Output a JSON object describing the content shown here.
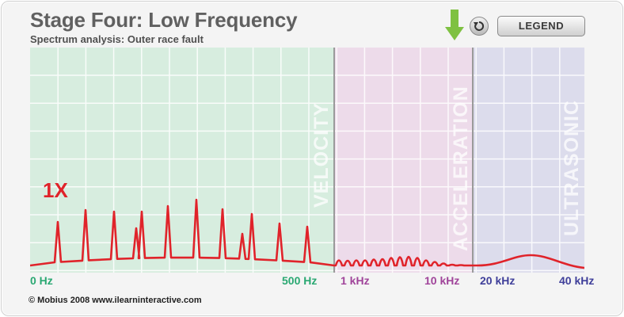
{
  "header": {
    "title": "Stage Four: Low Frequency",
    "subtitle": "Spectrum analysis: Outer race fault"
  },
  "controls": {
    "legend_label": "LEGEND",
    "reset_icon": "reset-icon",
    "indicator_icon": "down-arrow-icon"
  },
  "colors": {
    "velocity_band": "#d7eddf",
    "acceleration_band": "#eddbea",
    "ultrasonic_band": "#dcdcec",
    "spectrum_line": "#e0232a",
    "velocity_text": "#2aa872",
    "acceleration_text": "#a0449a",
    "ultrasonic_text": "#3f3f9a",
    "arrow": "#7fc142"
  },
  "chart_data": {
    "type": "line",
    "title": "Spectrum analysis: Outer race fault",
    "bands": [
      {
        "name": "VELOCITY",
        "from": "0 Hz",
        "to": "1 kHz"
      },
      {
        "name": "ACCELERATION",
        "from": "1 kHz",
        "to": "20 kHz"
      },
      {
        "name": "ULTRASONIC",
        "from": "20 kHz",
        "to": "40 kHz"
      }
    ],
    "x_tick_labels": [
      "0 Hz",
      "500 Hz",
      "1 kHz",
      "10 kHz",
      "20 kHz",
      "40 kHz"
    ],
    "annotation": "1X",
    "y_axis_labels": false,
    "grid": true
  },
  "footer": {
    "copyright": "© Mobius 2008 www.ilearninteractive.com"
  }
}
